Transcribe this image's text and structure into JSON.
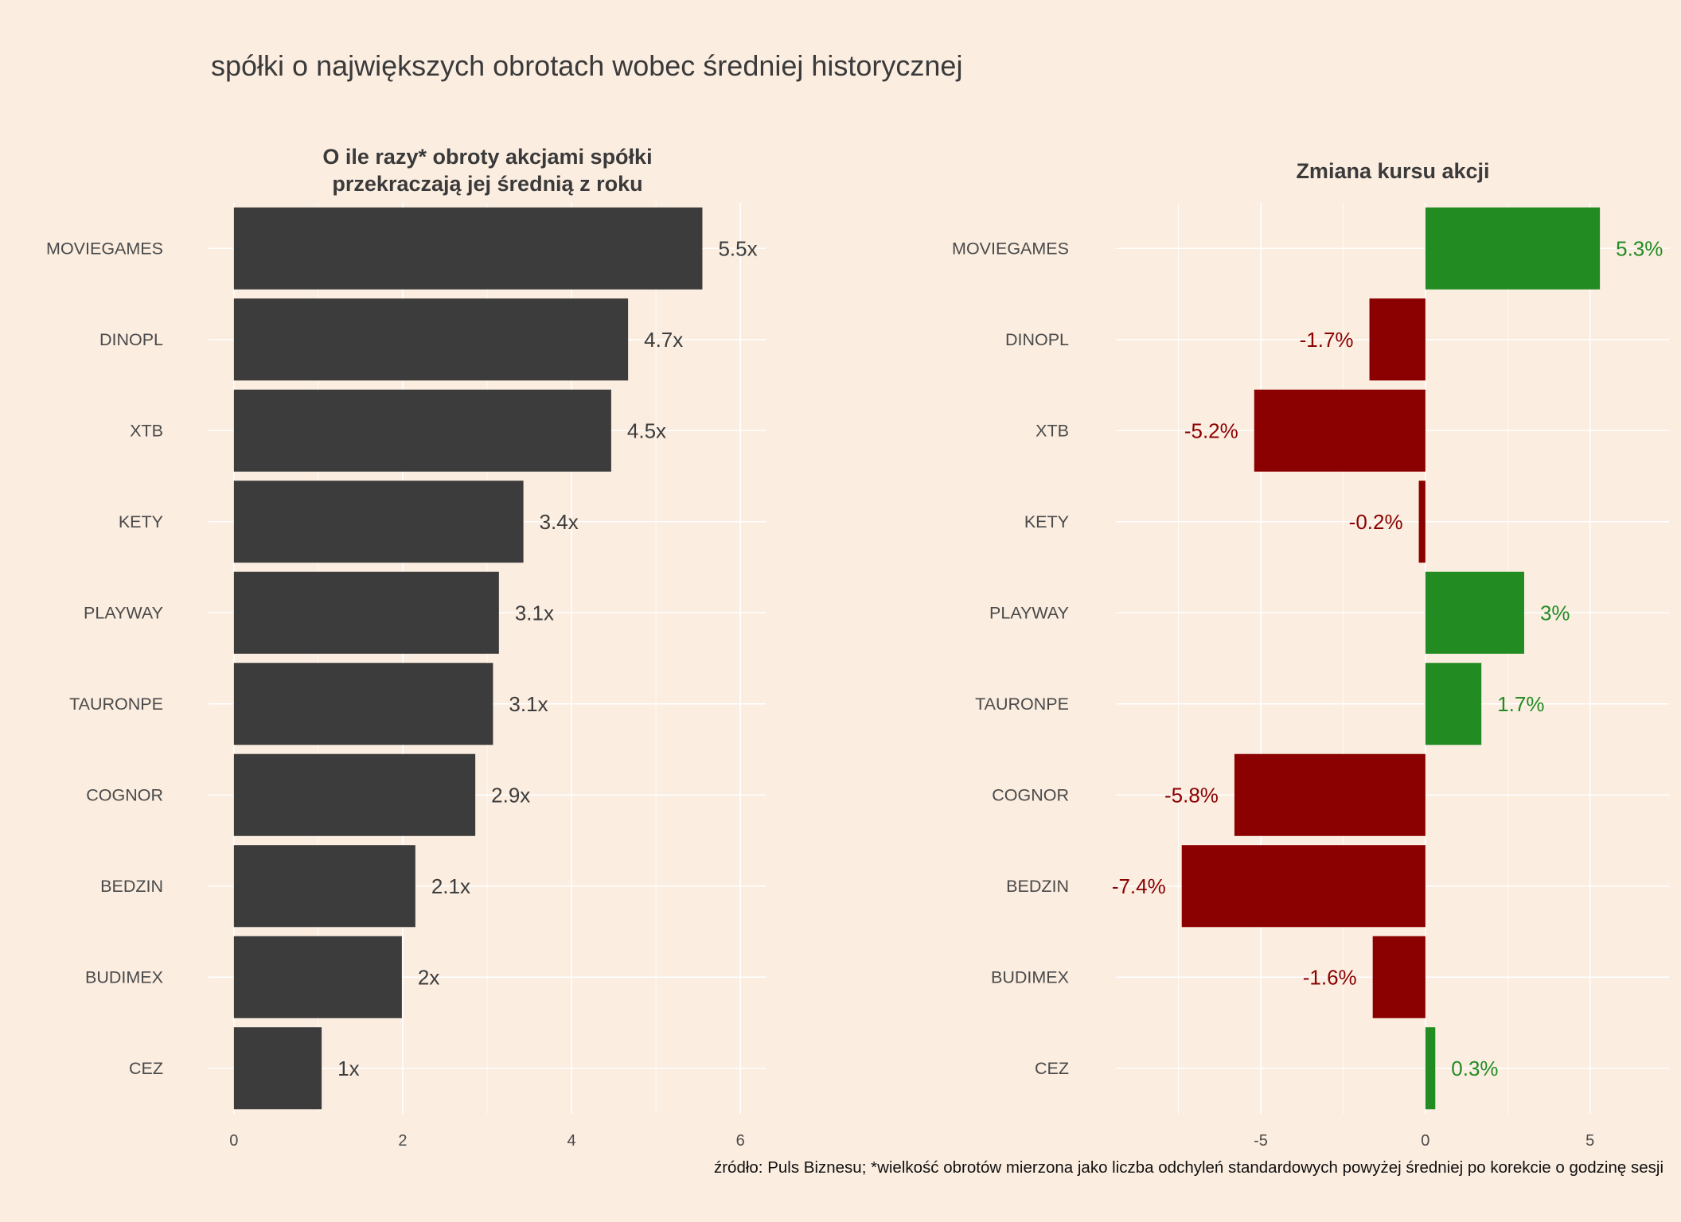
{
  "title": "spółki o największych obrotach wobec średniej historycznej",
  "caption": "źródło: Puls Biznesu; *wielkość obrotów mierzona jako liczba odchyleń standardowych powyżej średniej po korekcie o godzinę sesji",
  "colors": {
    "background": "#fbede0",
    "bar_dark": "#3c3c3c",
    "positive": "#228b22",
    "negative": "#8b0000",
    "grid": "#ffffff"
  },
  "chart_data": [
    {
      "type": "bar",
      "orientation": "horizontal",
      "title_lines": [
        "O ile razy* obroty akcjami spółki",
        "przekraczają jej średnią z roku"
      ],
      "categories": [
        "MOVIEGAMES",
        "DINOPL",
        "XTB",
        "KETY",
        "PLAYWAY",
        "TAURONPE",
        "COGNOR",
        "BEDZIN",
        "BUDIMEX",
        "CEZ"
      ],
      "values": [
        5.55,
        4.67,
        4.47,
        3.43,
        3.14,
        3.07,
        2.86,
        2.15,
        1.99,
        1.04
      ],
      "data_labels": [
        "5.5x",
        "4.7x",
        "4.5x",
        "3.4x",
        "3.1x",
        "3.1x",
        "2.9x",
        "2.1x",
        "2x",
        "1x"
      ],
      "xlim": [
        -0.3,
        6.3
      ],
      "xticks": [
        0,
        2,
        4,
        6
      ],
      "grid": true
    },
    {
      "type": "bar",
      "orientation": "horizontal",
      "title_lines": [
        "Zmiana kursu akcji"
      ],
      "categories": [
        "MOVIEGAMES",
        "DINOPL",
        "XTB",
        "KETY",
        "PLAYWAY",
        "TAURONPE",
        "COGNOR",
        "BEDZIN",
        "BUDIMEX",
        "CEZ"
      ],
      "values": [
        5.3,
        -1.7,
        -5.2,
        -0.2,
        3.0,
        1.7,
        -5.8,
        -7.4,
        -1.6,
        0.3
      ],
      "data_labels": [
        "5.3%",
        "-1.7%",
        "-5.2%",
        "-0.2%",
        "3%",
        "1.7%",
        "-5.8%",
        "-7.4%",
        "-1.6%",
        "0.3%"
      ],
      "xlim": [
        -9.4,
        7.4
      ],
      "xticks": [
        -5,
        0,
        5
      ],
      "grid": true
    }
  ]
}
